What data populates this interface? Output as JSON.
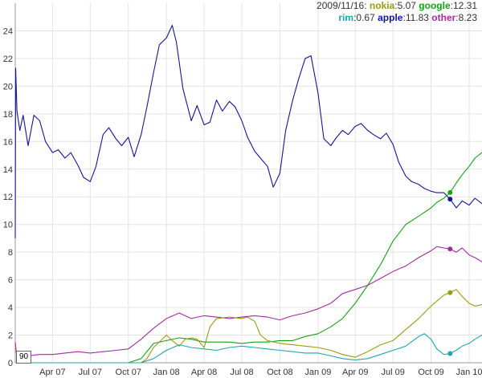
{
  "legend": {
    "date": "2009/11/16:",
    "entries": [
      {
        "name": "nokia",
        "value": "5.07",
        "color": "#9a9a12"
      },
      {
        "name": "google",
        "value": "12.31",
        "color": "#13a313"
      },
      {
        "name": "rim",
        "value": "0.67",
        "color": "#1fa5ab"
      },
      {
        "name": "apple",
        "value": "11.83",
        "color": "#14149a"
      },
      {
        "name": "other",
        "value": "8.23",
        "color": "#a02ca0"
      }
    ]
  },
  "roll_period": "90",
  "chart_data": {
    "type": "line",
    "ylim": [
      0,
      26
    ],
    "yticks": [
      0,
      2,
      4,
      6,
      8,
      10,
      12,
      14,
      16,
      18,
      20,
      22,
      24
    ],
    "xlim": [
      "2007-01-01",
      "2010-02-01"
    ],
    "xticks": [
      {
        "label": "Apr 07",
        "date": "2007-04-01"
      },
      {
        "label": "Jul 07",
        "date": "2007-07-01"
      },
      {
        "label": "Oct 07",
        "date": "2007-10-01"
      },
      {
        "label": "Jan 08",
        "date": "2008-01-01"
      },
      {
        "label": "Apr 08",
        "date": "2008-04-01"
      },
      {
        "label": "Jul 08",
        "date": "2008-07-01"
      },
      {
        "label": "Oct 08",
        "date": "2008-10-01"
      },
      {
        "label": "Jan 09",
        "date": "2009-01-01"
      },
      {
        "label": "Apr 09",
        "date": "2009-04-01"
      },
      {
        "label": "Jul 09",
        "date": "2009-07-01"
      },
      {
        "label": "Oct 09",
        "date": "2009-10-01"
      },
      {
        "label": "Jan 10",
        "date": "2010-01-01"
      }
    ],
    "highlight_date": "2009-11-16",
    "series": [
      {
        "name": "apple",
        "color": "#14149a",
        "points": [
          [
            "2007-01-01",
            9
          ],
          [
            "2007-01-02",
            21.3
          ],
          [
            "2007-01-05",
            18.2
          ],
          [
            "2007-01-12",
            16.8
          ],
          [
            "2007-01-20",
            17.9
          ],
          [
            "2007-02-01",
            15.7
          ],
          [
            "2007-02-15",
            17.9
          ],
          [
            "2007-03-01",
            17.5
          ],
          [
            "2007-03-15",
            16.0
          ],
          [
            "2007-04-01",
            15.2
          ],
          [
            "2007-04-15",
            15.4
          ],
          [
            "2007-05-01",
            14.8
          ],
          [
            "2007-05-15",
            15.2
          ],
          [
            "2007-06-01",
            14.3
          ],
          [
            "2007-06-15",
            13.4
          ],
          [
            "2007-07-01",
            13.1
          ],
          [
            "2007-07-15",
            14.2
          ],
          [
            "2007-08-01",
            16.5
          ],
          [
            "2007-08-15",
            17.0
          ],
          [
            "2007-09-01",
            16.2
          ],
          [
            "2007-09-15",
            15.7
          ],
          [
            "2007-10-01",
            16.3
          ],
          [
            "2007-10-15",
            14.9
          ],
          [
            "2007-11-01",
            16.5
          ],
          [
            "2007-11-15",
            18.5
          ],
          [
            "2007-12-01",
            21.0
          ],
          [
            "2007-12-15",
            23.0
          ],
          [
            "2008-01-01",
            23.5
          ],
          [
            "2008-01-15",
            24.4
          ],
          [
            "2008-01-25",
            23.2
          ],
          [
            "2008-02-10",
            19.8
          ],
          [
            "2008-03-01",
            17.5
          ],
          [
            "2008-03-15",
            18.6
          ],
          [
            "2008-04-01",
            17.2
          ],
          [
            "2008-04-15",
            17.4
          ],
          [
            "2008-05-01",
            19.0
          ],
          [
            "2008-05-15",
            18.2
          ],
          [
            "2008-06-01",
            18.9
          ],
          [
            "2008-06-15",
            18.5
          ],
          [
            "2008-07-01",
            17.5
          ],
          [
            "2008-07-15",
            16.3
          ],
          [
            "2008-08-01",
            15.3
          ],
          [
            "2008-08-15",
            14.8
          ],
          [
            "2008-09-01",
            14.2
          ],
          [
            "2008-09-15",
            12.7
          ],
          [
            "2008-10-01",
            13.7
          ],
          [
            "2008-10-15",
            16.8
          ],
          [
            "2008-11-01",
            19.0
          ],
          [
            "2008-11-15",
            20.5
          ],
          [
            "2008-12-01",
            22.0
          ],
          [
            "2008-12-15",
            22.2
          ],
          [
            "2009-01-01",
            19.5
          ],
          [
            "2009-01-15",
            16.2
          ],
          [
            "2009-02-01",
            15.7
          ],
          [
            "2009-02-15",
            16.3
          ],
          [
            "2009-03-01",
            16.8
          ],
          [
            "2009-03-15",
            16.5
          ],
          [
            "2009-04-01",
            17.1
          ],
          [
            "2009-04-15",
            17.3
          ],
          [
            "2009-05-01",
            16.8
          ],
          [
            "2009-05-15",
            16.5
          ],
          [
            "2009-06-01",
            16.2
          ],
          [
            "2009-06-15",
            16.6
          ],
          [
            "2009-07-01",
            15.8
          ],
          [
            "2009-07-15",
            14.5
          ],
          [
            "2009-08-01",
            13.5
          ],
          [
            "2009-08-15",
            13.1
          ],
          [
            "2009-09-01",
            12.9
          ],
          [
            "2009-09-15",
            12.6
          ],
          [
            "2009-10-01",
            12.4
          ],
          [
            "2009-10-15",
            12.3
          ],
          [
            "2009-11-01",
            12.3
          ],
          [
            "2009-11-16",
            11.83
          ],
          [
            "2009-12-01",
            11.2
          ],
          [
            "2009-12-15",
            11.7
          ],
          [
            "2010-01-01",
            11.4
          ],
          [
            "2010-01-15",
            11.9
          ],
          [
            "2010-02-01",
            11.5
          ]
        ]
      },
      {
        "name": "google",
        "color": "#13a313",
        "points": [
          [
            "2007-01-01",
            0.0
          ],
          [
            "2007-10-01",
            0.0
          ],
          [
            "2007-11-01",
            0.3
          ],
          [
            "2007-12-01",
            1.4
          ],
          [
            "2008-01-01",
            1.6
          ],
          [
            "2008-02-01",
            1.8
          ],
          [
            "2008-03-01",
            1.7
          ],
          [
            "2008-04-01",
            1.5
          ],
          [
            "2008-05-01",
            1.5
          ],
          [
            "2008-06-01",
            1.5
          ],
          [
            "2008-07-01",
            1.4
          ],
          [
            "2008-08-01",
            1.5
          ],
          [
            "2008-09-01",
            1.5
          ],
          [
            "2008-10-01",
            1.6
          ],
          [
            "2008-11-01",
            1.6
          ],
          [
            "2008-12-01",
            1.9
          ],
          [
            "2009-01-01",
            2.1
          ],
          [
            "2009-02-01",
            2.6
          ],
          [
            "2009-03-01",
            3.2
          ],
          [
            "2009-04-01",
            4.3
          ],
          [
            "2009-05-01",
            5.6
          ],
          [
            "2009-06-01",
            7.1
          ],
          [
            "2009-07-01",
            8.8
          ],
          [
            "2009-08-01",
            10.0
          ],
          [
            "2009-09-01",
            10.6
          ],
          [
            "2009-10-01",
            11.2
          ],
          [
            "2009-10-15",
            11.6
          ],
          [
            "2009-11-01",
            11.9
          ],
          [
            "2009-11-16",
            12.31
          ],
          [
            "2009-12-01",
            13.0
          ],
          [
            "2009-12-15",
            13.6
          ],
          [
            "2010-01-01",
            14.2
          ],
          [
            "2010-01-15",
            14.8
          ],
          [
            "2010-02-01",
            15.2
          ]
        ]
      },
      {
        "name": "other",
        "color": "#a02ca0",
        "points": [
          [
            "2007-01-01",
            1.5
          ],
          [
            "2007-01-05",
            0.3
          ],
          [
            "2007-02-01",
            0.5
          ],
          [
            "2007-03-01",
            0.6
          ],
          [
            "2007-04-01",
            0.6
          ],
          [
            "2007-05-01",
            0.7
          ],
          [
            "2007-06-01",
            0.8
          ],
          [
            "2007-07-01",
            0.7
          ],
          [
            "2007-08-01",
            0.8
          ],
          [
            "2007-09-01",
            0.9
          ],
          [
            "2007-10-01",
            1.0
          ],
          [
            "2007-11-01",
            1.7
          ],
          [
            "2007-12-01",
            2.5
          ],
          [
            "2008-01-01",
            3.2
          ],
          [
            "2008-02-01",
            3.6
          ],
          [
            "2008-03-01",
            3.2
          ],
          [
            "2008-04-01",
            3.4
          ],
          [
            "2008-05-01",
            3.3
          ],
          [
            "2008-06-01",
            3.2
          ],
          [
            "2008-07-01",
            3.3
          ],
          [
            "2008-08-01",
            3.4
          ],
          [
            "2008-09-01",
            3.3
          ],
          [
            "2008-10-01",
            3.1
          ],
          [
            "2008-11-01",
            3.4
          ],
          [
            "2008-12-01",
            3.6
          ],
          [
            "2009-01-01",
            3.9
          ],
          [
            "2009-02-01",
            4.3
          ],
          [
            "2009-03-01",
            5.0
          ],
          [
            "2009-04-01",
            5.3
          ],
          [
            "2009-05-01",
            5.6
          ],
          [
            "2009-06-01",
            6.1
          ],
          [
            "2009-07-01",
            6.6
          ],
          [
            "2009-08-01",
            7.0
          ],
          [
            "2009-09-01",
            7.6
          ],
          [
            "2009-10-01",
            8.1
          ],
          [
            "2009-10-15",
            8.4
          ],
          [
            "2009-11-01",
            8.3
          ],
          [
            "2009-11-16",
            8.23
          ],
          [
            "2009-12-01",
            8.0
          ],
          [
            "2009-12-15",
            8.3
          ],
          [
            "2010-01-01",
            7.8
          ],
          [
            "2010-01-15",
            7.6
          ],
          [
            "2010-02-01",
            7.3
          ]
        ]
      },
      {
        "name": "nokia",
        "color": "#9a9a12",
        "points": [
          [
            "2007-01-01",
            0.0
          ],
          [
            "2007-11-01",
            0.0
          ],
          [
            "2007-11-15",
            0.3
          ],
          [
            "2007-12-01",
            1.1
          ],
          [
            "2008-01-01",
            2.0
          ],
          [
            "2008-01-15",
            1.6
          ],
          [
            "2008-02-01",
            1.2
          ],
          [
            "2008-02-15",
            1.7
          ],
          [
            "2008-03-01",
            1.8
          ],
          [
            "2008-03-15",
            1.7
          ],
          [
            "2008-04-01",
            1.1
          ],
          [
            "2008-04-15",
            2.6
          ],
          [
            "2008-05-01",
            3.2
          ],
          [
            "2008-06-01",
            3.3
          ],
          [
            "2008-07-01",
            3.2
          ],
          [
            "2008-07-15",
            3.3
          ],
          [
            "2008-08-01",
            3.0
          ],
          [
            "2008-08-15",
            2.0
          ],
          [
            "2008-09-01",
            1.6
          ],
          [
            "2008-10-01",
            1.4
          ],
          [
            "2008-11-01",
            1.3
          ],
          [
            "2008-12-01",
            1.2
          ],
          [
            "2009-01-01",
            1.1
          ],
          [
            "2009-02-01",
            0.9
          ],
          [
            "2009-03-01",
            0.6
          ],
          [
            "2009-04-01",
            0.4
          ],
          [
            "2009-05-01",
            0.8
          ],
          [
            "2009-06-01",
            1.3
          ],
          [
            "2009-07-01",
            1.6
          ],
          [
            "2009-08-01",
            2.4
          ],
          [
            "2009-09-01",
            3.2
          ],
          [
            "2009-10-01",
            4.1
          ],
          [
            "2009-11-01",
            4.9
          ],
          [
            "2009-11-16",
            5.07
          ],
          [
            "2009-12-01",
            5.3
          ],
          [
            "2009-12-15",
            4.8
          ],
          [
            "2010-01-01",
            4.3
          ],
          [
            "2010-01-15",
            4.1
          ],
          [
            "2010-02-01",
            4.2
          ]
        ]
      },
      {
        "name": "rim",
        "color": "#1fa5ab",
        "points": [
          [
            "2007-01-01",
            0.0
          ],
          [
            "2007-11-01",
            0.0
          ],
          [
            "2007-12-01",
            0.3
          ],
          [
            "2008-01-01",
            0.9
          ],
          [
            "2008-02-01",
            1.3
          ],
          [
            "2008-03-01",
            1.1
          ],
          [
            "2008-04-01",
            1.0
          ],
          [
            "2008-05-01",
            0.9
          ],
          [
            "2008-06-01",
            1.1
          ],
          [
            "2008-07-01",
            1.2
          ],
          [
            "2008-08-01",
            1.1
          ],
          [
            "2008-09-01",
            1.0
          ],
          [
            "2008-10-01",
            0.9
          ],
          [
            "2008-11-01",
            0.8
          ],
          [
            "2008-12-01",
            0.7
          ],
          [
            "2009-01-01",
            0.7
          ],
          [
            "2009-02-01",
            0.5
          ],
          [
            "2009-03-01",
            0.3
          ],
          [
            "2009-04-01",
            0.2
          ],
          [
            "2009-05-01",
            0.3
          ],
          [
            "2009-06-01",
            0.6
          ],
          [
            "2009-07-01",
            0.9
          ],
          [
            "2009-08-01",
            1.2
          ],
          [
            "2009-09-01",
            1.9
          ],
          [
            "2009-09-15",
            2.1
          ],
          [
            "2009-10-01",
            1.7
          ],
          [
            "2009-10-15",
            1.0
          ],
          [
            "2009-11-01",
            0.6
          ],
          [
            "2009-11-16",
            0.67
          ],
          [
            "2009-12-01",
            0.9
          ],
          [
            "2009-12-15",
            1.2
          ],
          [
            "2010-01-01",
            1.4
          ],
          [
            "2010-01-15",
            1.7
          ],
          [
            "2010-02-01",
            2.0
          ]
        ]
      }
    ]
  }
}
